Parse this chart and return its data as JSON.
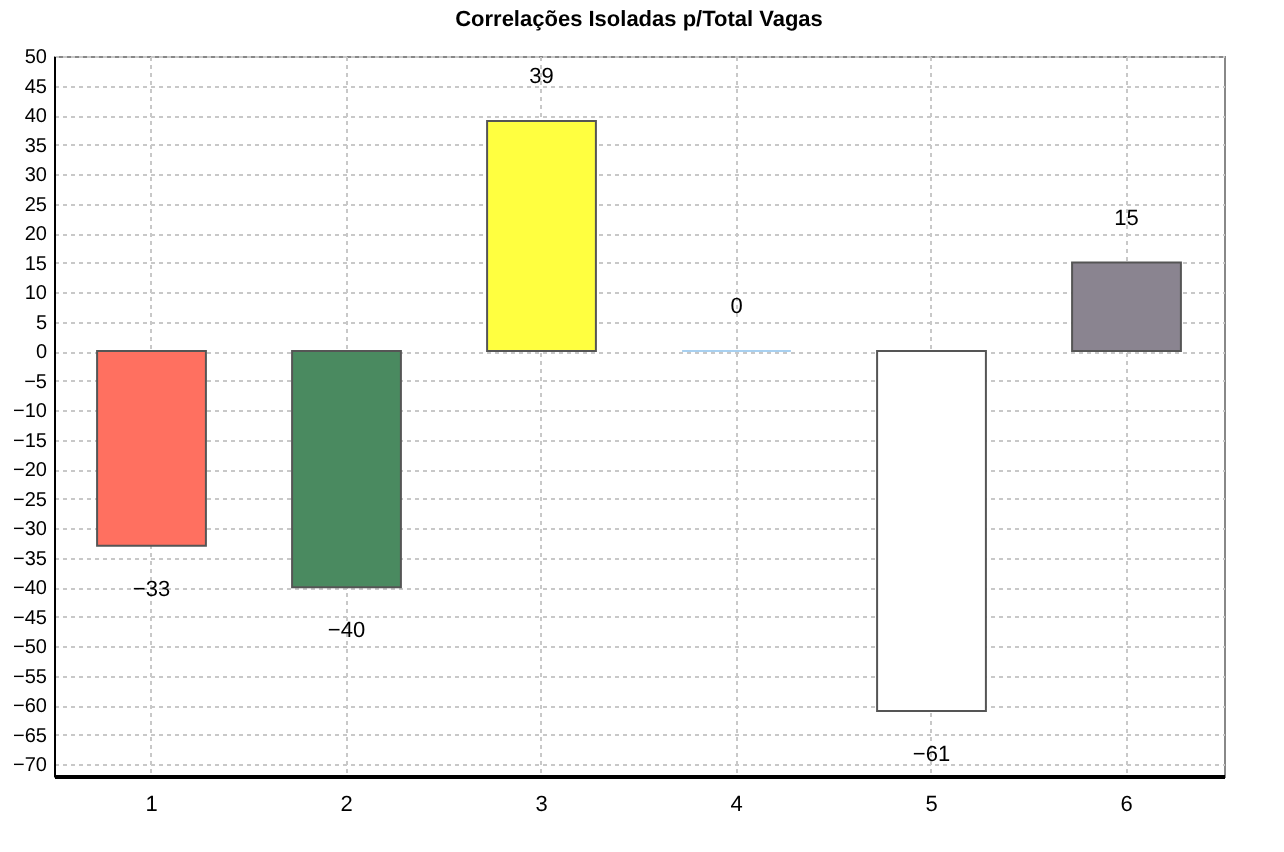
{
  "chart_data": {
    "type": "bar",
    "title": "Correlações Isoladas p/Total Vagas",
    "categories": [
      "1",
      "2",
      "3",
      "4",
      "5",
      "6"
    ],
    "values": [
      -33,
      -40,
      39,
      0,
      -61,
      15
    ],
    "colors": [
      "#ff7060",
      "#4a8a60",
      "#ffff40",
      "#a8d0f0",
      "#ffffff",
      "#8a8490"
    ],
    "ylim": [
      -72,
      50
    ],
    "yticks": [
      50,
      45,
      40,
      35,
      30,
      25,
      20,
      15,
      10,
      5,
      0,
      -5,
      -10,
      -15,
      -20,
      -25,
      -30,
      -35,
      -40,
      -45,
      -50,
      -55,
      -60,
      -65,
      -70
    ],
    "grid": true,
    "data_labels": true
  }
}
